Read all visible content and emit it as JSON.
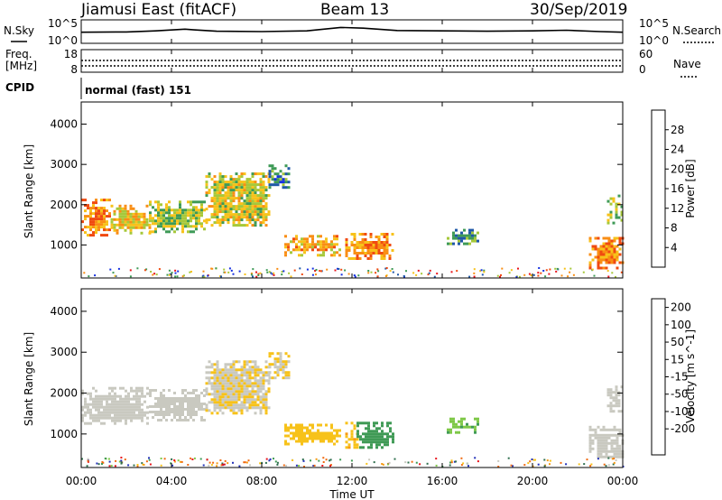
{
  "header": {
    "radar": "Jiamusi East (fitACF)",
    "beam": "Beam 13",
    "date": "30/Sep/2019"
  },
  "status_panel": {
    "nsky_label": "N.Sky",
    "nsearch_label": "N.Search",
    "freq_label_1": "Freq.",
    "freq_label_2": "[MHz]",
    "nave_label": "Nave",
    "cpid_label": "CPID",
    "cpid_value": "normal (fast) 151",
    "noise_ticks": [
      "10^5",
      "10^0"
    ],
    "freq_ticks": [
      "18",
      "8"
    ],
    "nave_ticks": [
      "60",
      "0"
    ]
  },
  "axes": {
    "y_label": "Slant Range [km]",
    "x_label": "Time UT",
    "y_ticks": [
      "4000",
      "3000",
      "2000",
      "1000"
    ],
    "x_ticks": [
      "00:00",
      "04:00",
      "08:00",
      "12:00",
      "16:00",
      "20:00",
      "00:00"
    ]
  },
  "power_bar": {
    "label": "Power [dB]",
    "ticks": [
      "28",
      "24",
      "20",
      "16",
      "12",
      "8",
      "4"
    ],
    "colors": [
      "#e8141c",
      "#f04a10",
      "#f98e14",
      "#f7c21a",
      "#a6c83a",
      "#3e9a56",
      "#1f58a8",
      "#1530e0"
    ]
  },
  "velocity_bar": {
    "label": "Velocity [m s^-1]",
    "ticks": [
      "200",
      "100",
      "50",
      "15",
      "-15",
      "-50",
      "-100",
      "-200"
    ],
    "colors": [
      "#2231b8",
      "#2f6f4e",
      "#3f9a55",
      "#7ec847",
      "#c9c9c0",
      "#f7c21a",
      "#f79a14",
      "#f06a10",
      "#e8141c"
    ]
  },
  "chart_data": {
    "type": "heatmap",
    "title": "Jiamusi East (fitACF) Beam 13 30/Sep/2019",
    "xlabel": "Time UT",
    "ylabel": "Slant Range [km]",
    "xlim_hours": [
      0,
      24
    ],
    "ylim_km": [
      180,
      4550
    ],
    "panels": [
      {
        "name": "Power",
        "unit": "dB",
        "range": [
          0,
          32
        ],
        "echo_regions": [
          {
            "t_start": 0.0,
            "t_end": 1.3,
            "r_low": 1250,
            "r_high": 2150,
            "value": 22
          },
          {
            "t_start": 1.3,
            "t_end": 3.0,
            "r_low": 1300,
            "r_high": 2000,
            "value": 18
          },
          {
            "t_start": 3.0,
            "t_end": 5.5,
            "r_low": 1350,
            "r_high": 2100,
            "value": 14
          },
          {
            "t_start": 5.5,
            "t_end": 8.3,
            "r_low": 1500,
            "r_high": 2800,
            "value": 16
          },
          {
            "t_start": 8.3,
            "t_end": 9.2,
            "r_low": 2400,
            "r_high": 3000,
            "value": 8
          },
          {
            "t_start": 9.0,
            "t_end": 11.5,
            "r_low": 750,
            "r_high": 1250,
            "value": 20
          },
          {
            "t_start": 11.7,
            "t_end": 13.8,
            "r_low": 650,
            "r_high": 1300,
            "value": 22
          },
          {
            "t_start": 16.2,
            "t_end": 17.6,
            "r_low": 1050,
            "r_high": 1400,
            "value": 10
          },
          {
            "t_start": 22.5,
            "t_end": 24.0,
            "r_low": 450,
            "r_high": 1200,
            "value": 22
          },
          {
            "t_start": 23.3,
            "t_end": 24.0,
            "r_low": 1550,
            "r_high": 2250,
            "value": 14
          }
        ]
      },
      {
        "name": "Velocity",
        "unit": "m s^-1",
        "range": [
          -250,
          250
        ],
        "echo_regions": [
          {
            "t_start": 0.0,
            "t_end": 3.0,
            "r_low": 1250,
            "r_high": 2150,
            "value": 0
          },
          {
            "t_start": 3.0,
            "t_end": 5.5,
            "r_low": 1350,
            "r_high": 2100,
            "value": 0
          },
          {
            "t_start": 5.5,
            "t_end": 8.3,
            "r_low": 1500,
            "r_high": 2800,
            "value": -10
          },
          {
            "t_start": 8.3,
            "t_end": 9.2,
            "r_low": 2400,
            "r_high": 3000,
            "value": -20
          },
          {
            "t_start": 9.0,
            "t_end": 11.5,
            "r_low": 750,
            "r_high": 1250,
            "value": -30
          },
          {
            "t_start": 11.7,
            "t_end": 12.2,
            "r_low": 650,
            "r_high": 1300,
            "value": -40
          },
          {
            "t_start": 12.2,
            "t_end": 13.8,
            "r_low": 650,
            "r_high": 1300,
            "value": 80
          },
          {
            "t_start": 16.2,
            "t_end": 17.6,
            "r_low": 1050,
            "r_high": 1400,
            "value": 45
          },
          {
            "t_start": 22.5,
            "t_end": 24.0,
            "r_low": 450,
            "r_high": 1200,
            "value": 0
          },
          {
            "t_start": 23.3,
            "t_end": 24.0,
            "r_low": 1550,
            "r_high": 2250,
            "value": 0
          }
        ]
      }
    ],
    "noise_trace": {
      "t": [
        0,
        2,
        3.3,
        4.6,
        5,
        6,
        8,
        10,
        11.5,
        12.5,
        14,
        16,
        18,
        20,
        21.5,
        23,
        24
      ],
      "log10_value": [
        2.7,
        2.8,
        3.1,
        3.6,
        3.4,
        3.0,
        2.9,
        3.1,
        4.1,
        3.9,
        3.2,
        3.1,
        3.0,
        3.1,
        3.3,
        2.9,
        2.7
      ]
    },
    "frequency_mhz": [
      10.8,
      10.8
    ],
    "nave": [
      22,
      22
    ]
  }
}
